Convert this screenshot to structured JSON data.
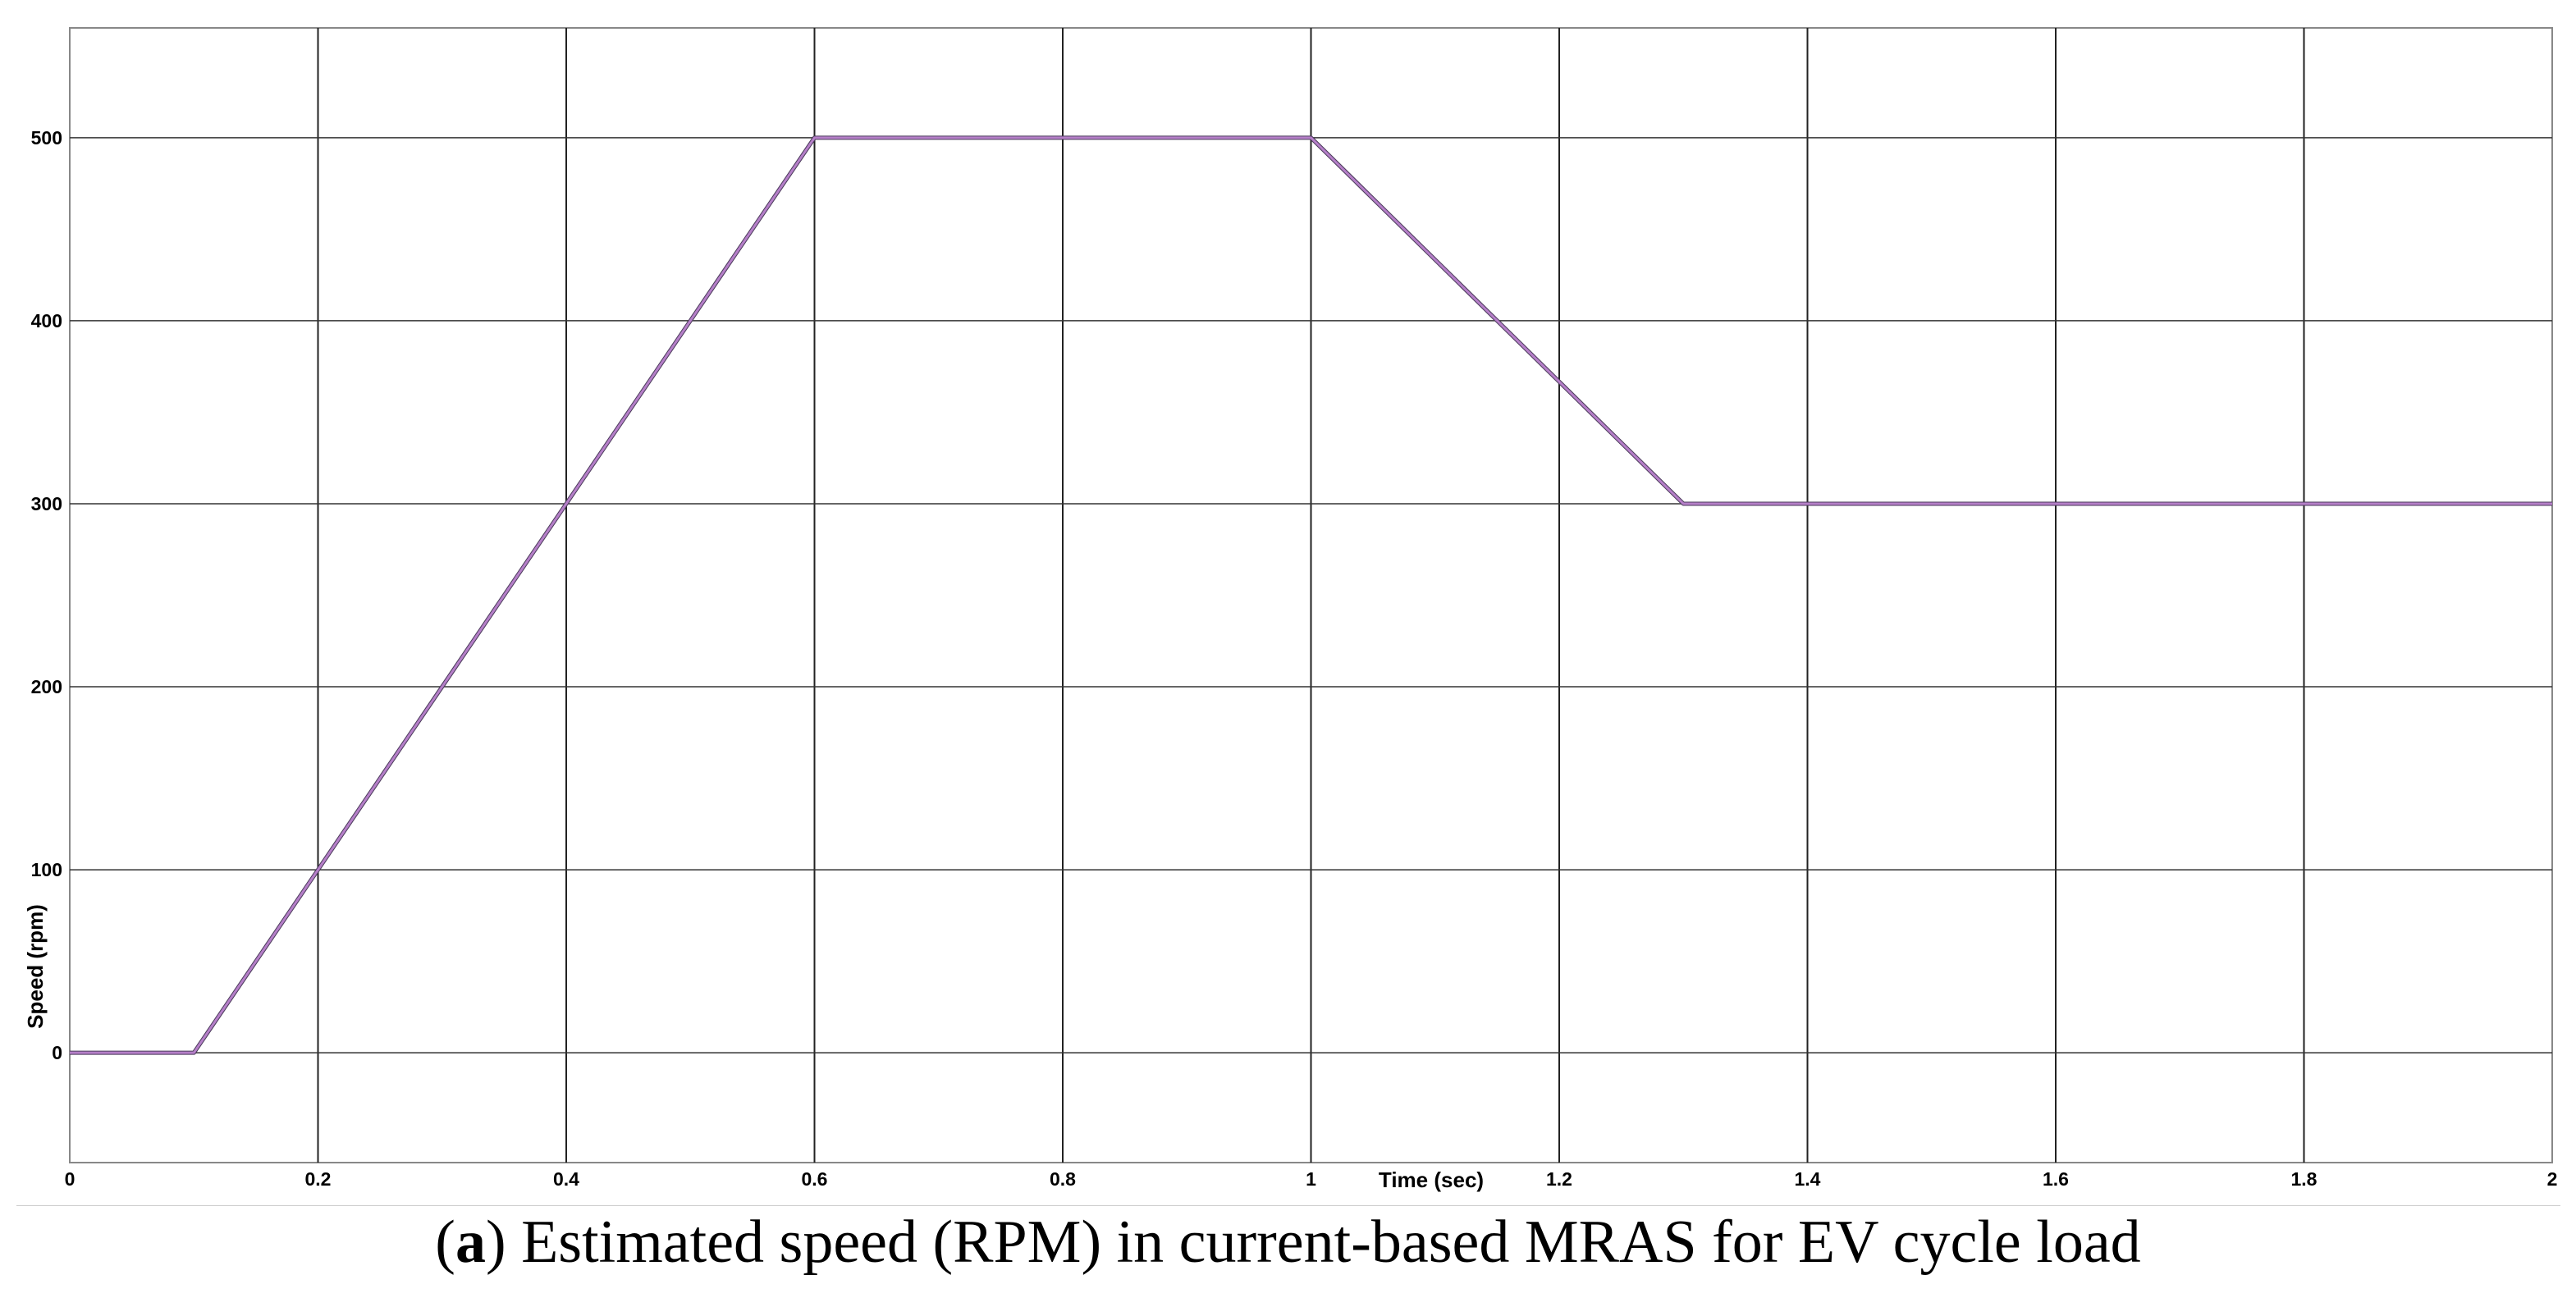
{
  "chart_data": {
    "type": "line",
    "title": "",
    "xlabel": "Time (sec)",
    "ylabel": "Speed (rpm)",
    "xlim": [
      0,
      2
    ],
    "ylim": [
      -60,
      560
    ],
    "x_ticks": [
      0,
      0.2,
      0.4,
      0.6,
      0.8,
      1,
      1.2,
      1.4,
      1.6,
      1.8,
      2
    ],
    "x_tick_labels": [
      "0",
      "0.2",
      "0.4",
      "0.6",
      "0.8",
      "1",
      "1.2",
      "1.4",
      "1.6",
      "1.8",
      "2"
    ],
    "y_ticks": [
      0,
      100,
      200,
      300,
      400,
      500
    ],
    "y_tick_labels": [
      "0",
      "100",
      "200",
      "300",
      "400",
      "500"
    ],
    "grid": true,
    "series": [
      {
        "x": [
          0,
          0.1,
          0.6,
          1.0,
          1.3,
          2.0
        ],
        "y": [
          0,
          0,
          500,
          500,
          300,
          300
        ],
        "color": "#b57fc8"
      }
    ],
    "line_color_dark": "#4a3a5a"
  },
  "caption": {
    "label": "a",
    "text": "Estimated speed (RPM) in current-based MRAS for EV cycle load"
  }
}
